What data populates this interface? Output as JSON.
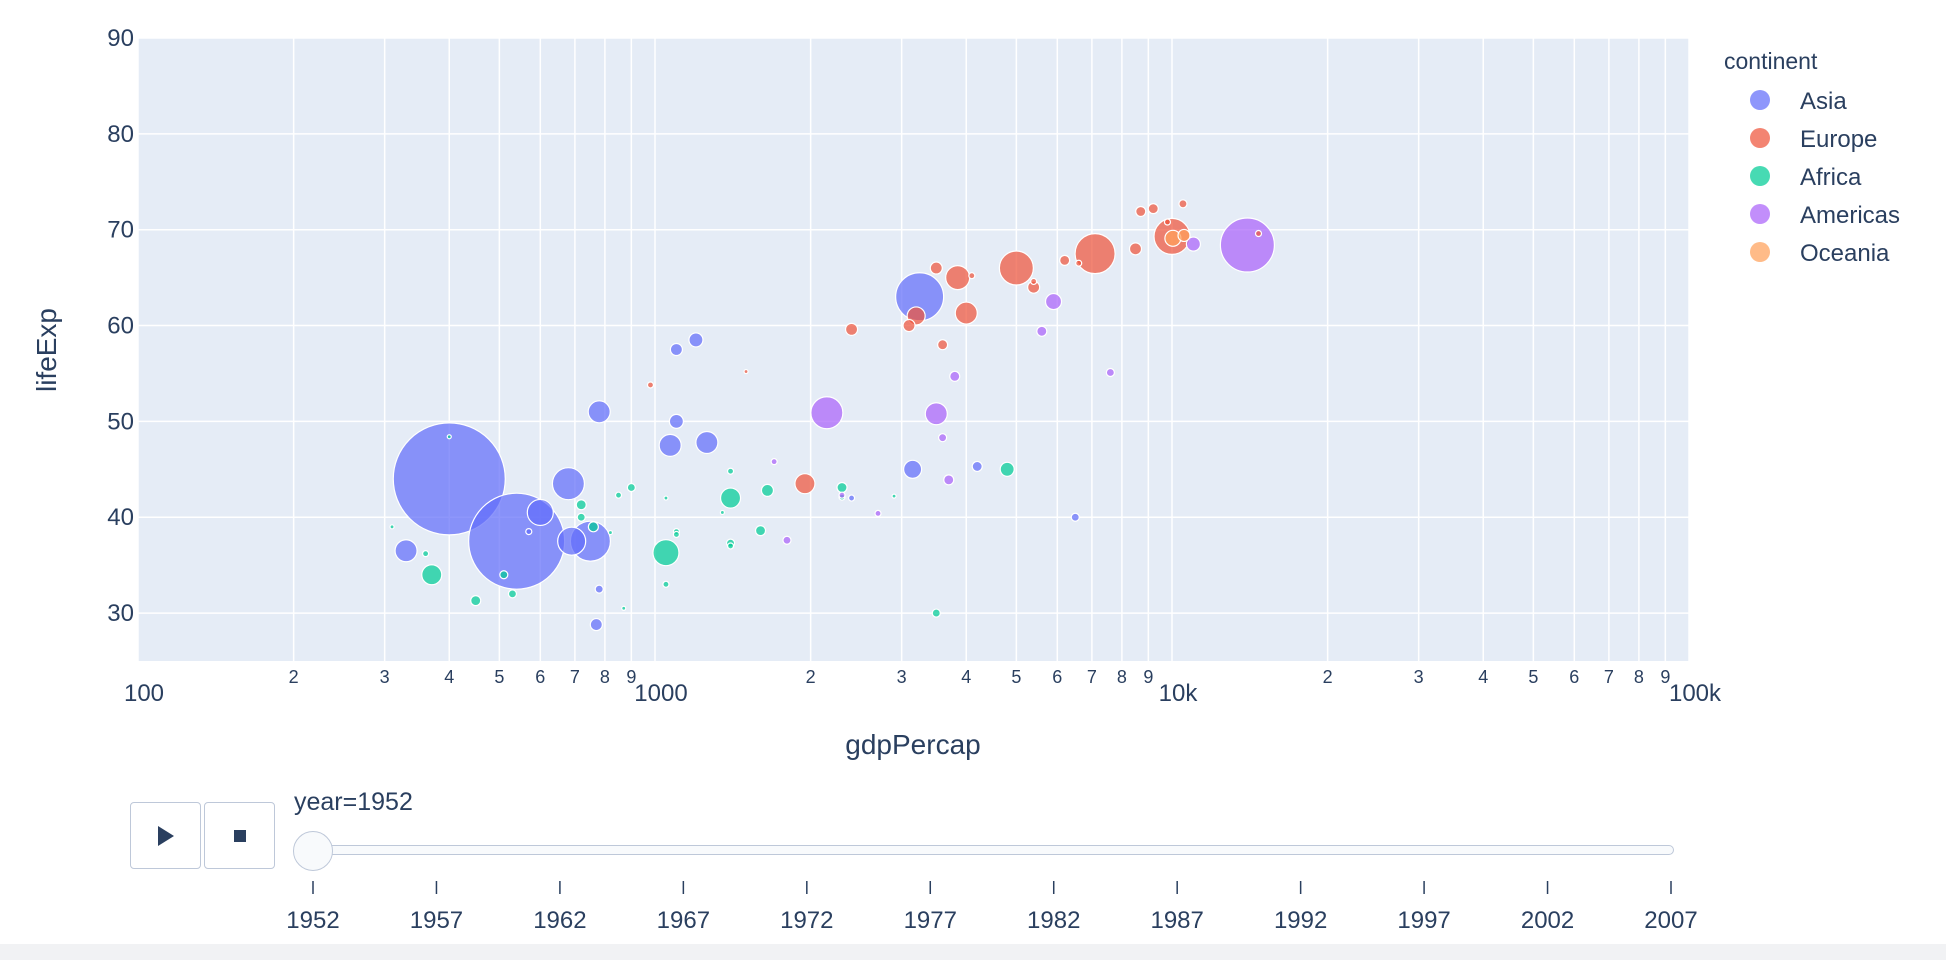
{
  "chart_data": {
    "type": "scatter",
    "xlabel": "gdpPercap",
    "ylabel": "lifeExp",
    "x_scale": "log",
    "xlim": [
      100,
      100000
    ],
    "ylim": [
      25,
      90
    ],
    "grid": true,
    "legend_position": "right",
    "x_ticks_major": [
      "100",
      "1000",
      "10k",
      "100k"
    ],
    "x_ticks_minor": [
      "2",
      "3",
      "4",
      "5",
      "6",
      "7",
      "8",
      "9"
    ],
    "y_ticks": [
      "30",
      "40",
      "50",
      "60",
      "70",
      "80",
      "90"
    ],
    "legend": {
      "title": "continent",
      "entries": [
        {
          "name": "Asia",
          "color": "#636efa"
        },
        {
          "name": "Europe",
          "color": "#EF553B"
        },
        {
          "name": "Africa",
          "color": "#00cc96"
        },
        {
          "name": "Americas",
          "color": "#ab63fa"
        },
        {
          "name": "Oceania",
          "color": "#FFA15A"
        }
      ]
    },
    "series": [
      {
        "name": "Asia",
        "color": "#636efa",
        "points": [
          [
            400,
            44,
            56
          ],
          [
            540,
            37.5,
            48
          ],
          [
            3250,
            63,
            24
          ],
          [
            750,
            37.5,
            20
          ],
          [
            680,
            43.5,
            16
          ],
          [
            690,
            37.5,
            14
          ],
          [
            600,
            40.5,
            13
          ],
          [
            330,
            36.5,
            11
          ],
          [
            780,
            51,
            11
          ],
          [
            1260,
            47.8,
            11
          ],
          [
            1070,
            47.5,
            11
          ],
          [
            3150,
            45,
            9
          ],
          [
            1200,
            58.5,
            7
          ],
          [
            1100,
            57.5,
            6
          ],
          [
            1100,
            50,
            7
          ],
          [
            770,
            28.8,
            6
          ],
          [
            4200,
            45.3,
            5
          ],
          [
            6500,
            40,
            4
          ],
          [
            780,
            32.5,
            4
          ],
          [
            570,
            38.5,
            3
          ],
          [
            2400,
            42,
            3
          ]
        ]
      },
      {
        "name": "Europe",
        "color": "#EF553B",
        "points": [
          [
            7100,
            67.5,
            20
          ],
          [
            10000,
            69.3,
            18
          ],
          [
            5000,
            66,
            17
          ],
          [
            3850,
            65,
            12
          ],
          [
            4000,
            61.3,
            11
          ],
          [
            3200,
            61,
            9
          ],
          [
            1950,
            43.5,
            10
          ],
          [
            8500,
            68,
            6
          ],
          [
            3500,
            66,
            6
          ],
          [
            2400,
            59.6,
            6
          ],
          [
            3100,
            60,
            6
          ],
          [
            6200,
            66.8,
            5
          ],
          [
            5400,
            64,
            6
          ],
          [
            8700,
            71.9,
            5
          ],
          [
            9200,
            72.2,
            5
          ],
          [
            3600,
            58,
            5
          ],
          [
            4100,
            65.2,
            3
          ],
          [
            5400,
            64.6,
            3
          ],
          [
            10500,
            72.7,
            4
          ],
          [
            980,
            53.8,
            3
          ],
          [
            6600,
            66.5,
            3
          ],
          [
            9800,
            70.8,
            3
          ],
          [
            14700,
            69.6,
            3
          ],
          [
            1500,
            55.2,
            2
          ]
        ]
      },
      {
        "name": "Africa",
        "color": "#00cc96",
        "points": [
          [
            1050,
            36.3,
            13
          ],
          [
            1400,
            42,
            10
          ],
          [
            370,
            34,
            10
          ],
          [
            4800,
            45,
            7
          ],
          [
            1650,
            42.8,
            6
          ],
          [
            1600,
            38.6,
            5
          ],
          [
            450,
            31.3,
            5
          ],
          [
            720,
            41.3,
            5
          ],
          [
            760,
            39,
            5
          ],
          [
            2300,
            43.1,
            5
          ],
          [
            720,
            40,
            4
          ],
          [
            900,
            43.1,
            4
          ],
          [
            2300,
            42.1,
            3
          ],
          [
            3500,
            30,
            4
          ],
          [
            1400,
            37.3,
            4
          ],
          [
            510,
            34,
            4
          ],
          [
            530,
            32,
            4
          ],
          [
            850,
            42.3,
            3
          ],
          [
            1100,
            38.5,
            3
          ],
          [
            1400,
            37,
            3
          ],
          [
            1100,
            38.2,
            3
          ],
          [
            1050,
            33,
            3
          ],
          [
            1400,
            44.8,
            3
          ],
          [
            360,
            36.2,
            3
          ],
          [
            820,
            38.4,
            2
          ],
          [
            1050,
            42,
            2
          ],
          [
            400,
            48.4,
            2
          ],
          [
            310,
            39,
            2
          ],
          [
            1350,
            40.5,
            2
          ],
          [
            870,
            30.5,
            2
          ],
          [
            2900,
            42.2,
            2
          ]
        ]
      },
      {
        "name": "Americas",
        "color": "#ab63fa",
        "points": [
          [
            13990,
            68.4,
            27
          ],
          [
            2150,
            50.9,
            16
          ],
          [
            3500,
            50.8,
            11
          ],
          [
            5900,
            62.5,
            8
          ],
          [
            11000,
            68.5,
            7
          ],
          [
            5600,
            59.4,
            5
          ],
          [
            3800,
            54.7,
            5
          ],
          [
            3600,
            48.3,
            4
          ],
          [
            3700,
            43.9,
            5
          ],
          [
            7600,
            55.1,
            4
          ],
          [
            1800,
            37.6,
            4
          ],
          [
            2700,
            40.4,
            3
          ],
          [
            1700,
            45.8,
            3
          ],
          [
            2300,
            42.3,
            3
          ]
        ]
      },
      {
        "name": "Oceania",
        "color": "#FFA15A",
        "points": [
          [
            10040,
            69.1,
            8
          ],
          [
            10550,
            69.4,
            6
          ]
        ]
      }
    ]
  },
  "animation": {
    "slider_label": "year=1952",
    "current_year": 1952,
    "years": [
      "1952",
      "1957",
      "1962",
      "1967",
      "1972",
      "1977",
      "1982",
      "1987",
      "1992",
      "1997",
      "2002",
      "2007"
    ],
    "play_icon": "play-icon",
    "stop_icon": "stop-icon"
  }
}
